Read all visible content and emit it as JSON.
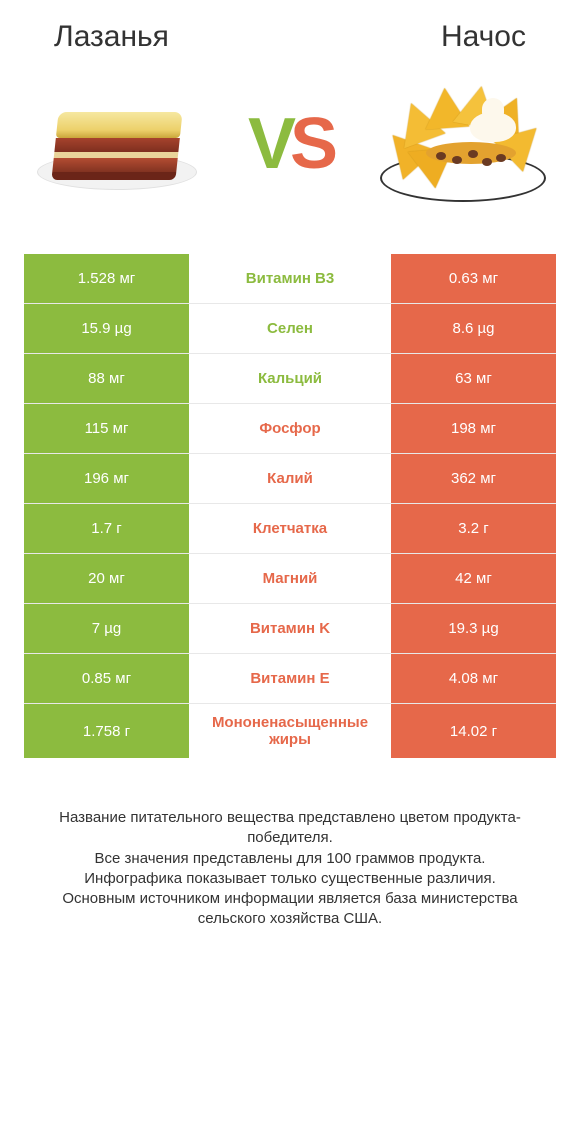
{
  "header": {
    "left_title": "Лазанья",
    "right_title": "Начос"
  },
  "colors": {
    "green": "#8cbb3f",
    "red": "#e6684a",
    "text": "#333333",
    "white": "#ffffff"
  },
  "vs": {
    "v": "V",
    "s": "S"
  },
  "rows": [
    {
      "label": "Витамин B3",
      "left": "1.528 мг",
      "right": "0.63 мг",
      "winner": "left"
    },
    {
      "label": "Селен",
      "left": "15.9 µg",
      "right": "8.6 µg",
      "winner": "left"
    },
    {
      "label": "Кальций",
      "left": "88 мг",
      "right": "63 мг",
      "winner": "left"
    },
    {
      "label": "Фосфор",
      "left": "115 мг",
      "right": "198 мг",
      "winner": "right"
    },
    {
      "label": "Калий",
      "left": "196 мг",
      "right": "362 мг",
      "winner": "right"
    },
    {
      "label": "Клетчатка",
      "left": "1.7 г",
      "right": "3.2 г",
      "winner": "right"
    },
    {
      "label": "Магний",
      "left": "20 мг",
      "right": "42 мг",
      "winner": "right"
    },
    {
      "label": "Витамин K",
      "left": "7 µg",
      "right": "19.3 µg",
      "winner": "right"
    },
    {
      "label": "Витамин E",
      "left": "0.85 мг",
      "right": "4.08 мг",
      "winner": "right"
    },
    {
      "label": "Мононенасыщенные жиры",
      "left": "1.758 г",
      "right": "14.02 г",
      "winner": "right"
    }
  ],
  "footnote": {
    "l1": "Название питательного вещества представлено цветом продукта-победителя.",
    "l2": "Все значения представлены для 100 граммов продукта.",
    "l3": "Инфографика показывает только существенные различия.",
    "l4": "Основным источником информации является база министерства сельского хозяйства США."
  }
}
